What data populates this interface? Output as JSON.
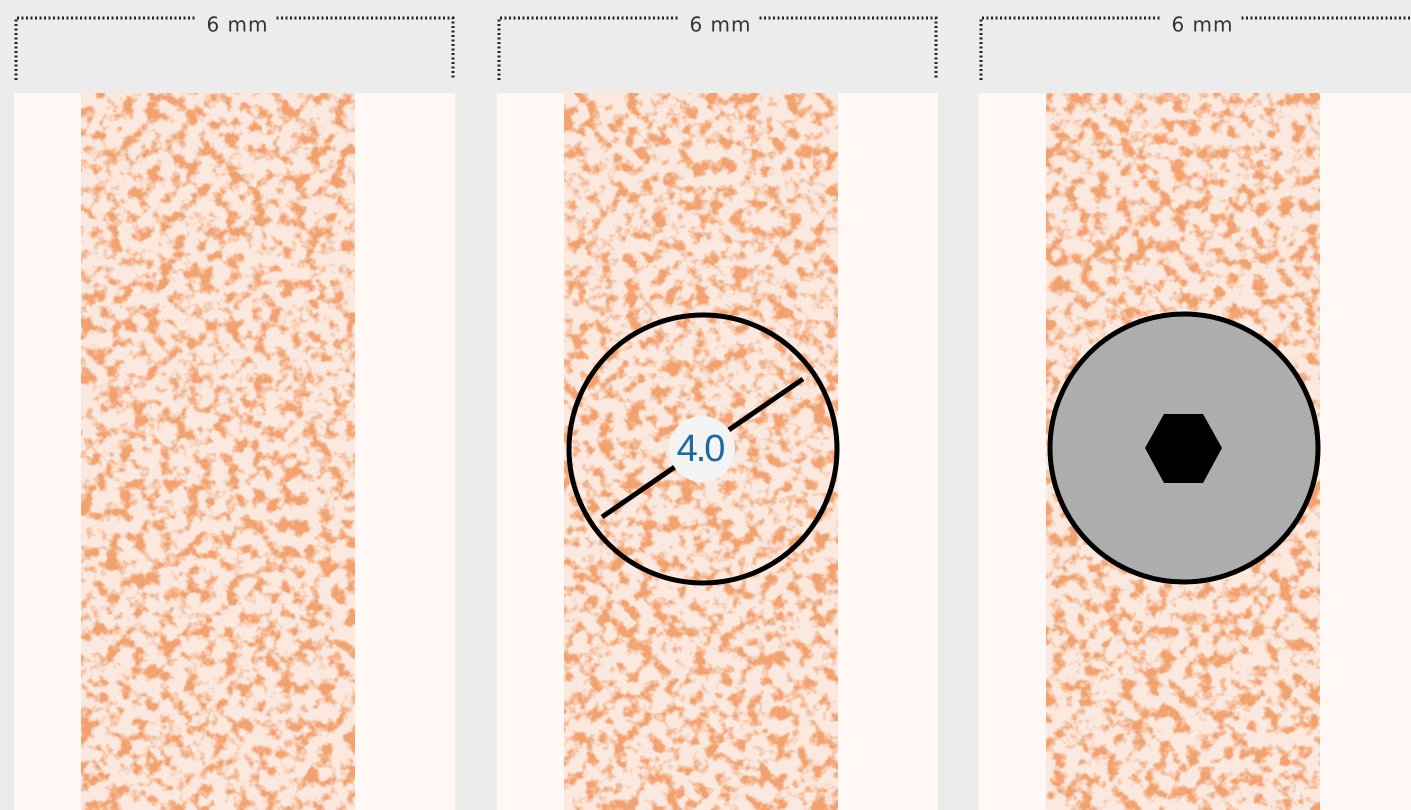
{
  "panels": [
    {
      "label": "6 mm"
    },
    {
      "label": "6 mm",
      "drill_label": "4.0"
    },
    {
      "label": "6 mm"
    }
  ]
}
